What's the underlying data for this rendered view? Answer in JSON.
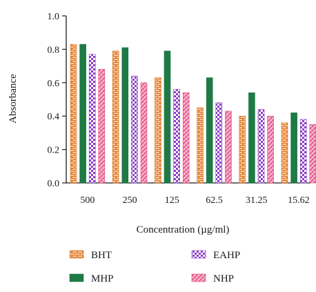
{
  "chart_data": {
    "type": "bar",
    "xlabel": "Concentration (µg/ml)",
    "ylabel": "Absorbance",
    "categories": [
      "500",
      "250",
      "125",
      "62.5",
      "31.25",
      "15.62"
    ],
    "ylim": [
      0,
      1.0
    ],
    "yticks": [
      "0.0",
      "0.2",
      "0.4",
      "0.6",
      "0.8",
      "1.0"
    ],
    "grid": false,
    "legend_position": "bottom",
    "series": [
      {
        "name": "BHT",
        "values": [
          0.83,
          0.79,
          0.63,
          0.45,
          0.4,
          0.36
        ],
        "color": "#e07b2a",
        "pattern": "brick"
      },
      {
        "name": "MHP",
        "values": [
          0.83,
          0.81,
          0.79,
          0.63,
          0.54,
          0.42
        ],
        "color": "#1f7a45",
        "pattern": "solid"
      },
      {
        "name": "EAHP",
        "values": [
          0.77,
          0.64,
          0.56,
          0.48,
          0.44,
          0.38
        ],
        "color": "#8a3fc6",
        "pattern": "checker"
      },
      {
        "name": "NHP",
        "values": [
          0.68,
          0.6,
          0.54,
          0.43,
          0.4,
          0.35
        ],
        "color": "#e0457b",
        "pattern": "hatch"
      }
    ]
  }
}
